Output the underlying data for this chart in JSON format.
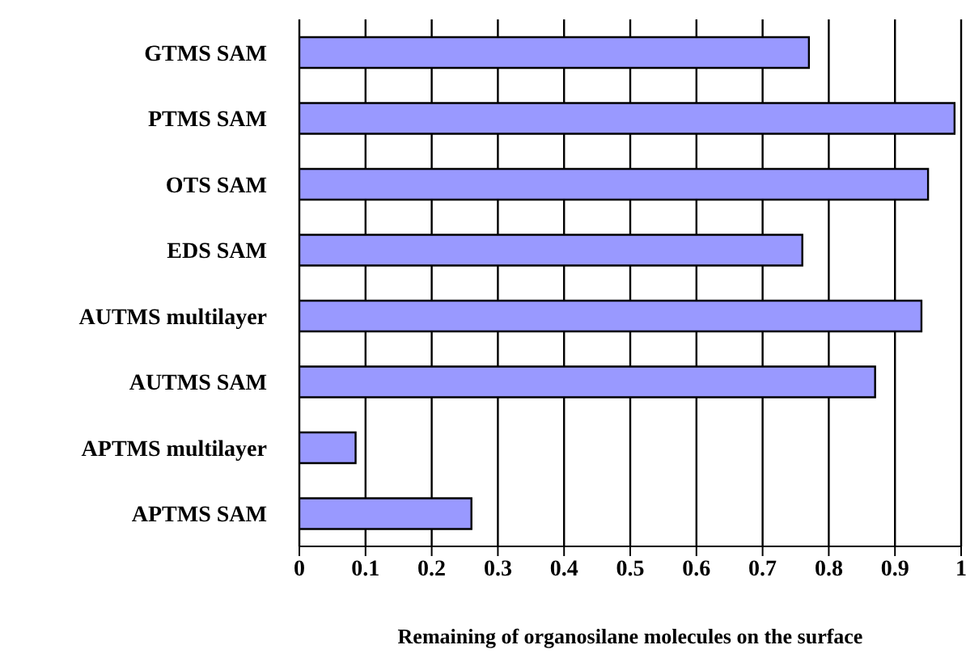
{
  "chart_data": {
    "type": "bar",
    "orientation": "horizontal",
    "xlabel": "Remaining of organosilane molecules on the surface",
    "categories": [
      "GTMS SAM",
      "PTMS SAM",
      "OTS SAM",
      "EDS SAM",
      "AUTMS multilayer",
      "AUTMS SAM",
      "APTMS multilayer",
      "APTMS SAM"
    ],
    "values": [
      0.77,
      0.99,
      0.95,
      0.76,
      0.94,
      0.87,
      0.085,
      0.26
    ],
    "color": "#9999ff",
    "xlim": [
      0,
      1
    ],
    "xticks": [
      0,
      0.1,
      0.2,
      0.3,
      0.4,
      0.5,
      0.6,
      0.7,
      0.8,
      0.9,
      1
    ],
    "grid": "x"
  }
}
